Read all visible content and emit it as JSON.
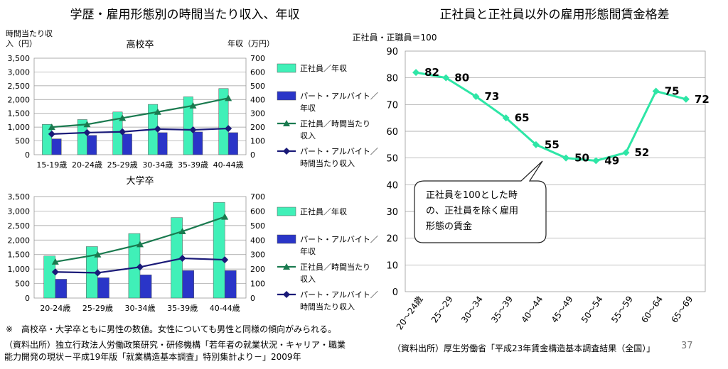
{
  "left_title": "学歴・雇用形態別の時間当たり収入、年収",
  "right_title": "正社員と正社員以外の雇用形態間賃金格差",
  "note": "※　高校卒・大学卒ともに男性の数値。女性についても男性と同様の傾向がみられる。",
  "source_left_line1": "（資料出所）独立行政法人労働政策研究・研修機構「若年者の就業状況・キャリア・職業",
  "source_left_line2": "能力開発の現状－平成19年版「就業構造基本調査」特別集計より－」2009年",
  "source_right": "（資料出所）厚生労働省「平成23年賃金構造基本調査結果（全国）」",
  "page_number": "37",
  "colors": {
    "bar_regular": "#40f0b8",
    "bar_parttime": "#2a35c8",
    "line_regular": "#1a7a4f",
    "line_parttime": "#1a1a78",
    "ratio_line": "#2ee6a6"
  },
  "chart_data": [
    {
      "type": "bar",
      "title": "高校卒",
      "ylabel_left_line1": "時間当たり収",
      "ylabel_left_line2": "入（円）",
      "ylabel_right": "年収（万円）",
      "categories": [
        "15-19歳",
        "20-24歳",
        "25-29歳",
        "30-34歳",
        "35-39歳",
        "40-44歳"
      ],
      "ylim_left": [
        0,
        3500
      ],
      "ylim_right": [
        0,
        700
      ],
      "yticks_left": [
        "0",
        "500",
        "1,000",
        "1,500",
        "2,000",
        "2,500",
        "3,000",
        "3,500"
      ],
      "yticks_right": [
        "0",
        "100",
        "200",
        "300",
        "400",
        "500",
        "600",
        "700"
      ],
      "grid": true,
      "legend_position": "right",
      "series": [
        {
          "name_line1": "正社員／年収",
          "name_line2": "",
          "kind": "bar",
          "axis": "right",
          "values": [
            220,
            255,
            310,
            365,
            420,
            480
          ]
        },
        {
          "name_line1": "パート・アルバイト／",
          "name_line2": "年収",
          "kind": "bar",
          "axis": "right",
          "values": [
            115,
            140,
            150,
            160,
            165,
            160
          ]
        },
        {
          "name_line1": "正社員／時間当たり",
          "name_line2": "収入",
          "kind": "line",
          "axis": "left",
          "values": [
            1000,
            1100,
            1330,
            1550,
            1780,
            2050
          ]
        },
        {
          "name_line1": "パート・アルバイト／",
          "name_line2": "時間当たり収入",
          "kind": "line",
          "axis": "left",
          "values": [
            750,
            800,
            830,
            930,
            900,
            950
          ]
        }
      ]
    },
    {
      "type": "bar",
      "title": "大学卒",
      "ylim_left": [
        0,
        3500
      ],
      "ylim_right": [
        0,
        700
      ],
      "yticks_left": [
        "0",
        "500",
        "1,000",
        "1,500",
        "2,000",
        "2,500",
        "3,000",
        "3,500"
      ],
      "yticks_right": [
        "0",
        "100",
        "200",
        "300",
        "400",
        "500",
        "600",
        "700"
      ],
      "categories": [
        "20-24歳",
        "25-29歳",
        "30-34歳",
        "35-39歳",
        "40-44歳"
      ],
      "grid": true,
      "legend_position": "right",
      "series": [
        {
          "name_line1": "正社員／年収",
          "name_line2": "",
          "kind": "bar",
          "axis": "right",
          "values": [
            290,
            355,
            445,
            555,
            660
          ]
        },
        {
          "name_line1": "パート・アルバイト／",
          "name_line2": "年収",
          "kind": "bar",
          "axis": "right",
          "values": [
            130,
            140,
            160,
            190,
            190
          ]
        },
        {
          "name_line1": "正社員／時間当たり",
          "name_line2": "収入",
          "kind": "line",
          "axis": "left",
          "values": [
            1250,
            1500,
            1850,
            2300,
            2800
          ]
        },
        {
          "name_line1": "パート・アルバイト／",
          "name_line2": "時間当たり収入",
          "kind": "line",
          "axis": "left",
          "values": [
            900,
            870,
            1070,
            1370,
            1320
          ]
        }
      ]
    },
    {
      "type": "line",
      "ylabel": "正社員・正職員＝100",
      "categories": [
        "20～24歳",
        "25～29",
        "30～34",
        "35～39",
        "40～44",
        "45～49",
        "50～54",
        "55～59",
        "60～64",
        "65～69"
      ],
      "values": [
        82,
        80,
        73,
        65,
        55,
        50,
        49,
        52,
        75,
        72
      ],
      "ylim": [
        0,
        90
      ],
      "yticks": [
        "0",
        "10",
        "20",
        "30",
        "40",
        "50",
        "60",
        "70",
        "80",
        "90"
      ],
      "grid": true,
      "callout_line1": "正社員を100とした時",
      "callout_line2": "の、正社員を除く雇用",
      "callout_line3": "形態の賃金"
    }
  ]
}
